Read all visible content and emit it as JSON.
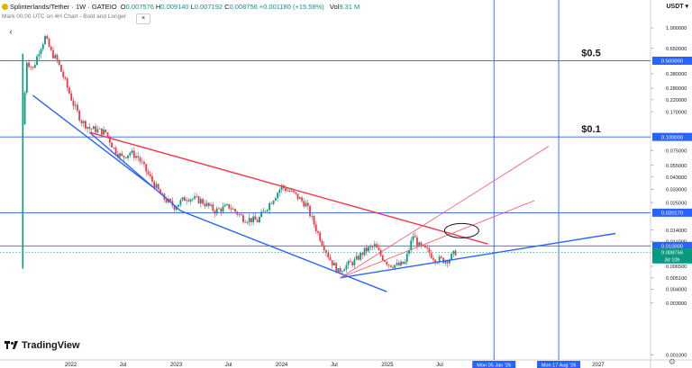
{
  "header": {
    "symbol": "Splinterlands/Tether · 1W · GATEIO",
    "o_label": "O",
    "o_value": "0.007576",
    "h_label": "H",
    "h_value": "0.009140",
    "l_label": "L",
    "l_value": "0.007192",
    "c_label": "C",
    "c_value": "0.008756",
    "change": "+0.001180 (+15.58%)",
    "vol_label": "Vol",
    "vol_value": "9.31 M",
    "subtitle": "Mark 00:00 UTC on 4H Chart - Bold and Longer",
    "close_icon": "x-icon",
    "gear_icon": "gear-icon",
    "nav_icon": "chevron-left-icon",
    "logo_text": "TradingView"
  },
  "chart_data": {
    "type": "candlestick",
    "scale": "log",
    "ylim": [
      0.0009,
      1.1
    ],
    "currency": "USDT",
    "y_ticks": [
      {
        "value": 1.0,
        "label": "1.000000"
      },
      {
        "value": 0.65,
        "label": "0.650000"
      },
      {
        "value": 0.38,
        "label": "0.380000"
      },
      {
        "value": 0.28,
        "label": "0.280000"
      },
      {
        "value": 0.22,
        "label": "0.220000"
      },
      {
        "value": 0.17,
        "label": "0.170000"
      },
      {
        "value": 0.075,
        "label": "0.075000"
      },
      {
        "value": 0.055,
        "label": "0.055000"
      },
      {
        "value": 0.043,
        "label": "0.043000"
      },
      {
        "value": 0.033,
        "label": "0.033000"
      },
      {
        "value": 0.025,
        "label": "0.025000"
      },
      {
        "value": 0.014,
        "label": "0.014000"
      },
      {
        "value": 0.011,
        "label": "0.011000"
      },
      {
        "value": 0.0065,
        "label": "0.006500"
      },
      {
        "value": 0.0051,
        "label": "0.005100"
      },
      {
        "value": 0.004,
        "label": "0.004000"
      },
      {
        "value": 0.003,
        "label": "0.003000"
      },
      {
        "value": 0.001,
        "label": "0.001000"
      }
    ],
    "price_lines": [
      {
        "value": 0.5,
        "label": "0.500000",
        "annotation": "$0.5"
      },
      {
        "value": 0.1,
        "label": "0.100000",
        "annotation": "$0.1"
      },
      {
        "value": 0.02017,
        "label": "0.020170",
        "annotation": ""
      },
      {
        "value": 0.01,
        "label": "0.010000",
        "annotation": ""
      }
    ],
    "current_price": {
      "value": 0.008756,
      "label": "0.008756",
      "countdown": "3d 10h"
    },
    "x_ticks": [
      {
        "date": "2022-01-01",
        "label": "2022"
      },
      {
        "date": "2022-07-01",
        "label": "Jul"
      },
      {
        "date": "2023-01-01",
        "label": "2023"
      },
      {
        "date": "2023-07-01",
        "label": "Jul"
      },
      {
        "date": "2024-01-01",
        "label": "2024"
      },
      {
        "date": "2024-07-01",
        "label": "Jul"
      },
      {
        "date": "2025-01-01",
        "label": "2025"
      },
      {
        "date": "2025-07-01",
        "label": "Jul"
      },
      {
        "date": "2027-01-01",
        "label": "2027"
      }
    ],
    "vertical_markers": [
      {
        "date": "2026-01-05",
        "label": "Mon 05 Jan '26"
      },
      {
        "date": "2026-08-17",
        "label": "Mon 17 Aug '26"
      }
    ],
    "price_path": [
      {
        "date": "2021-07-19",
        "price": 0.13
      },
      {
        "date": "2021-08-02",
        "price": 0.5
      },
      {
        "date": "2021-08-23",
        "price": 0.42
      },
      {
        "date": "2021-09-13",
        "price": 0.62
      },
      {
        "date": "2021-10-04",
        "price": 0.82
      },
      {
        "date": "2021-10-25",
        "price": 0.6
      },
      {
        "date": "2021-11-15",
        "price": 0.5
      },
      {
        "date": "2021-12-13",
        "price": 0.32
      },
      {
        "date": "2022-01-10",
        "price": 0.2
      },
      {
        "date": "2022-02-07",
        "price": 0.14
      },
      {
        "date": "2022-03-07",
        "price": 0.12
      },
      {
        "date": "2022-04-04",
        "price": 0.115
      },
      {
        "date": "2022-05-02",
        "price": 0.11
      },
      {
        "date": "2022-05-30",
        "price": 0.078
      },
      {
        "date": "2022-06-27",
        "price": 0.065
      },
      {
        "date": "2022-07-25",
        "price": 0.072
      },
      {
        "date": "2022-08-22",
        "price": 0.065
      },
      {
        "date": "2022-10-03",
        "price": 0.042
      },
      {
        "date": "2022-11-14",
        "price": 0.028
      },
      {
        "date": "2022-12-26",
        "price": 0.023
      },
      {
        "date": "2023-02-06",
        "price": 0.028
      },
      {
        "date": "2023-03-27",
        "price": 0.026
      },
      {
        "date": "2023-05-15",
        "price": 0.021
      },
      {
        "date": "2023-07-03",
        "price": 0.023
      },
      {
        "date": "2023-08-21",
        "price": 0.018
      },
      {
        "date": "2023-10-09",
        "price": 0.017
      },
      {
        "date": "2023-11-27",
        "price": 0.026
      },
      {
        "date": "2024-01-01",
        "price": 0.035
      },
      {
        "date": "2024-02-12",
        "price": 0.03
      },
      {
        "date": "2024-03-25",
        "price": 0.024
      },
      {
        "date": "2024-05-06",
        "price": 0.013
      },
      {
        "date": "2024-06-17",
        "price": 0.0075
      },
      {
        "date": "2024-07-15",
        "price": 0.0058
      },
      {
        "date": "2024-08-05",
        "price": 0.0065
      },
      {
        "date": "2024-09-09",
        "price": 0.0072
      },
      {
        "date": "2024-10-14",
        "price": 0.009
      },
      {
        "date": "2024-11-18",
        "price": 0.01
      },
      {
        "date": "2024-12-09",
        "price": 0.0082
      },
      {
        "date": "2025-01-06",
        "price": 0.0068
      },
      {
        "date": "2025-02-10",
        "price": 0.0066
      },
      {
        "date": "2025-03-03",
        "price": 0.007
      },
      {
        "date": "2025-03-31",
        "price": 0.0125
      },
      {
        "date": "2025-04-21",
        "price": 0.01
      },
      {
        "date": "2025-05-19",
        "price": 0.009
      },
      {
        "date": "2025-06-16",
        "price": 0.0076
      },
      {
        "date": "2025-07-14",
        "price": 0.0074
      },
      {
        "date": "2025-08-04",
        "price": 0.0076
      },
      {
        "date": "2025-08-25",
        "price": 0.0088
      }
    ],
    "trendlines": [
      {
        "color": "#2962ff",
        "points": [
          {
            "date": "2021-08-23",
            "price": 0.24
          },
          {
            "date": "2022-10-10",
            "price": 0.035
          }
        ]
      },
      {
        "color": "#2962ff",
        "points": [
          {
            "date": "2022-03-07",
            "price": 0.11
          },
          {
            "date": "2023-01-16",
            "price": 0.021
          },
          {
            "date": "2024-12-30",
            "price": 0.0038
          }
        ]
      },
      {
        "color": "#2962ff",
        "points": [
          {
            "date": "2024-07-22",
            "price": 0.0051
          },
          {
            "date": "2027-03-01",
            "price": 0.013
          }
        ]
      },
      {
        "color": "#f23645",
        "points": [
          {
            "date": "2022-03-07",
            "price": 0.11
          },
          {
            "date": "2025-12-15",
            "price": 0.0104
          }
        ]
      },
      {
        "color": "#f7525f",
        "points": [
          {
            "date": "2024-07-22",
            "price": 0.0051
          },
          {
            "date": "2026-07-13",
            "price": 0.082
          }
        ]
      },
      {
        "color": "#f7525f",
        "points": [
          {
            "date": "2024-07-22",
            "price": 0.0051
          },
          {
            "date": "2026-05-25",
            "price": 0.026
          }
        ]
      }
    ],
    "ellipse": {
      "date": "2025-09-15",
      "price": 0.0138,
      "color": "#131722"
    }
  }
}
